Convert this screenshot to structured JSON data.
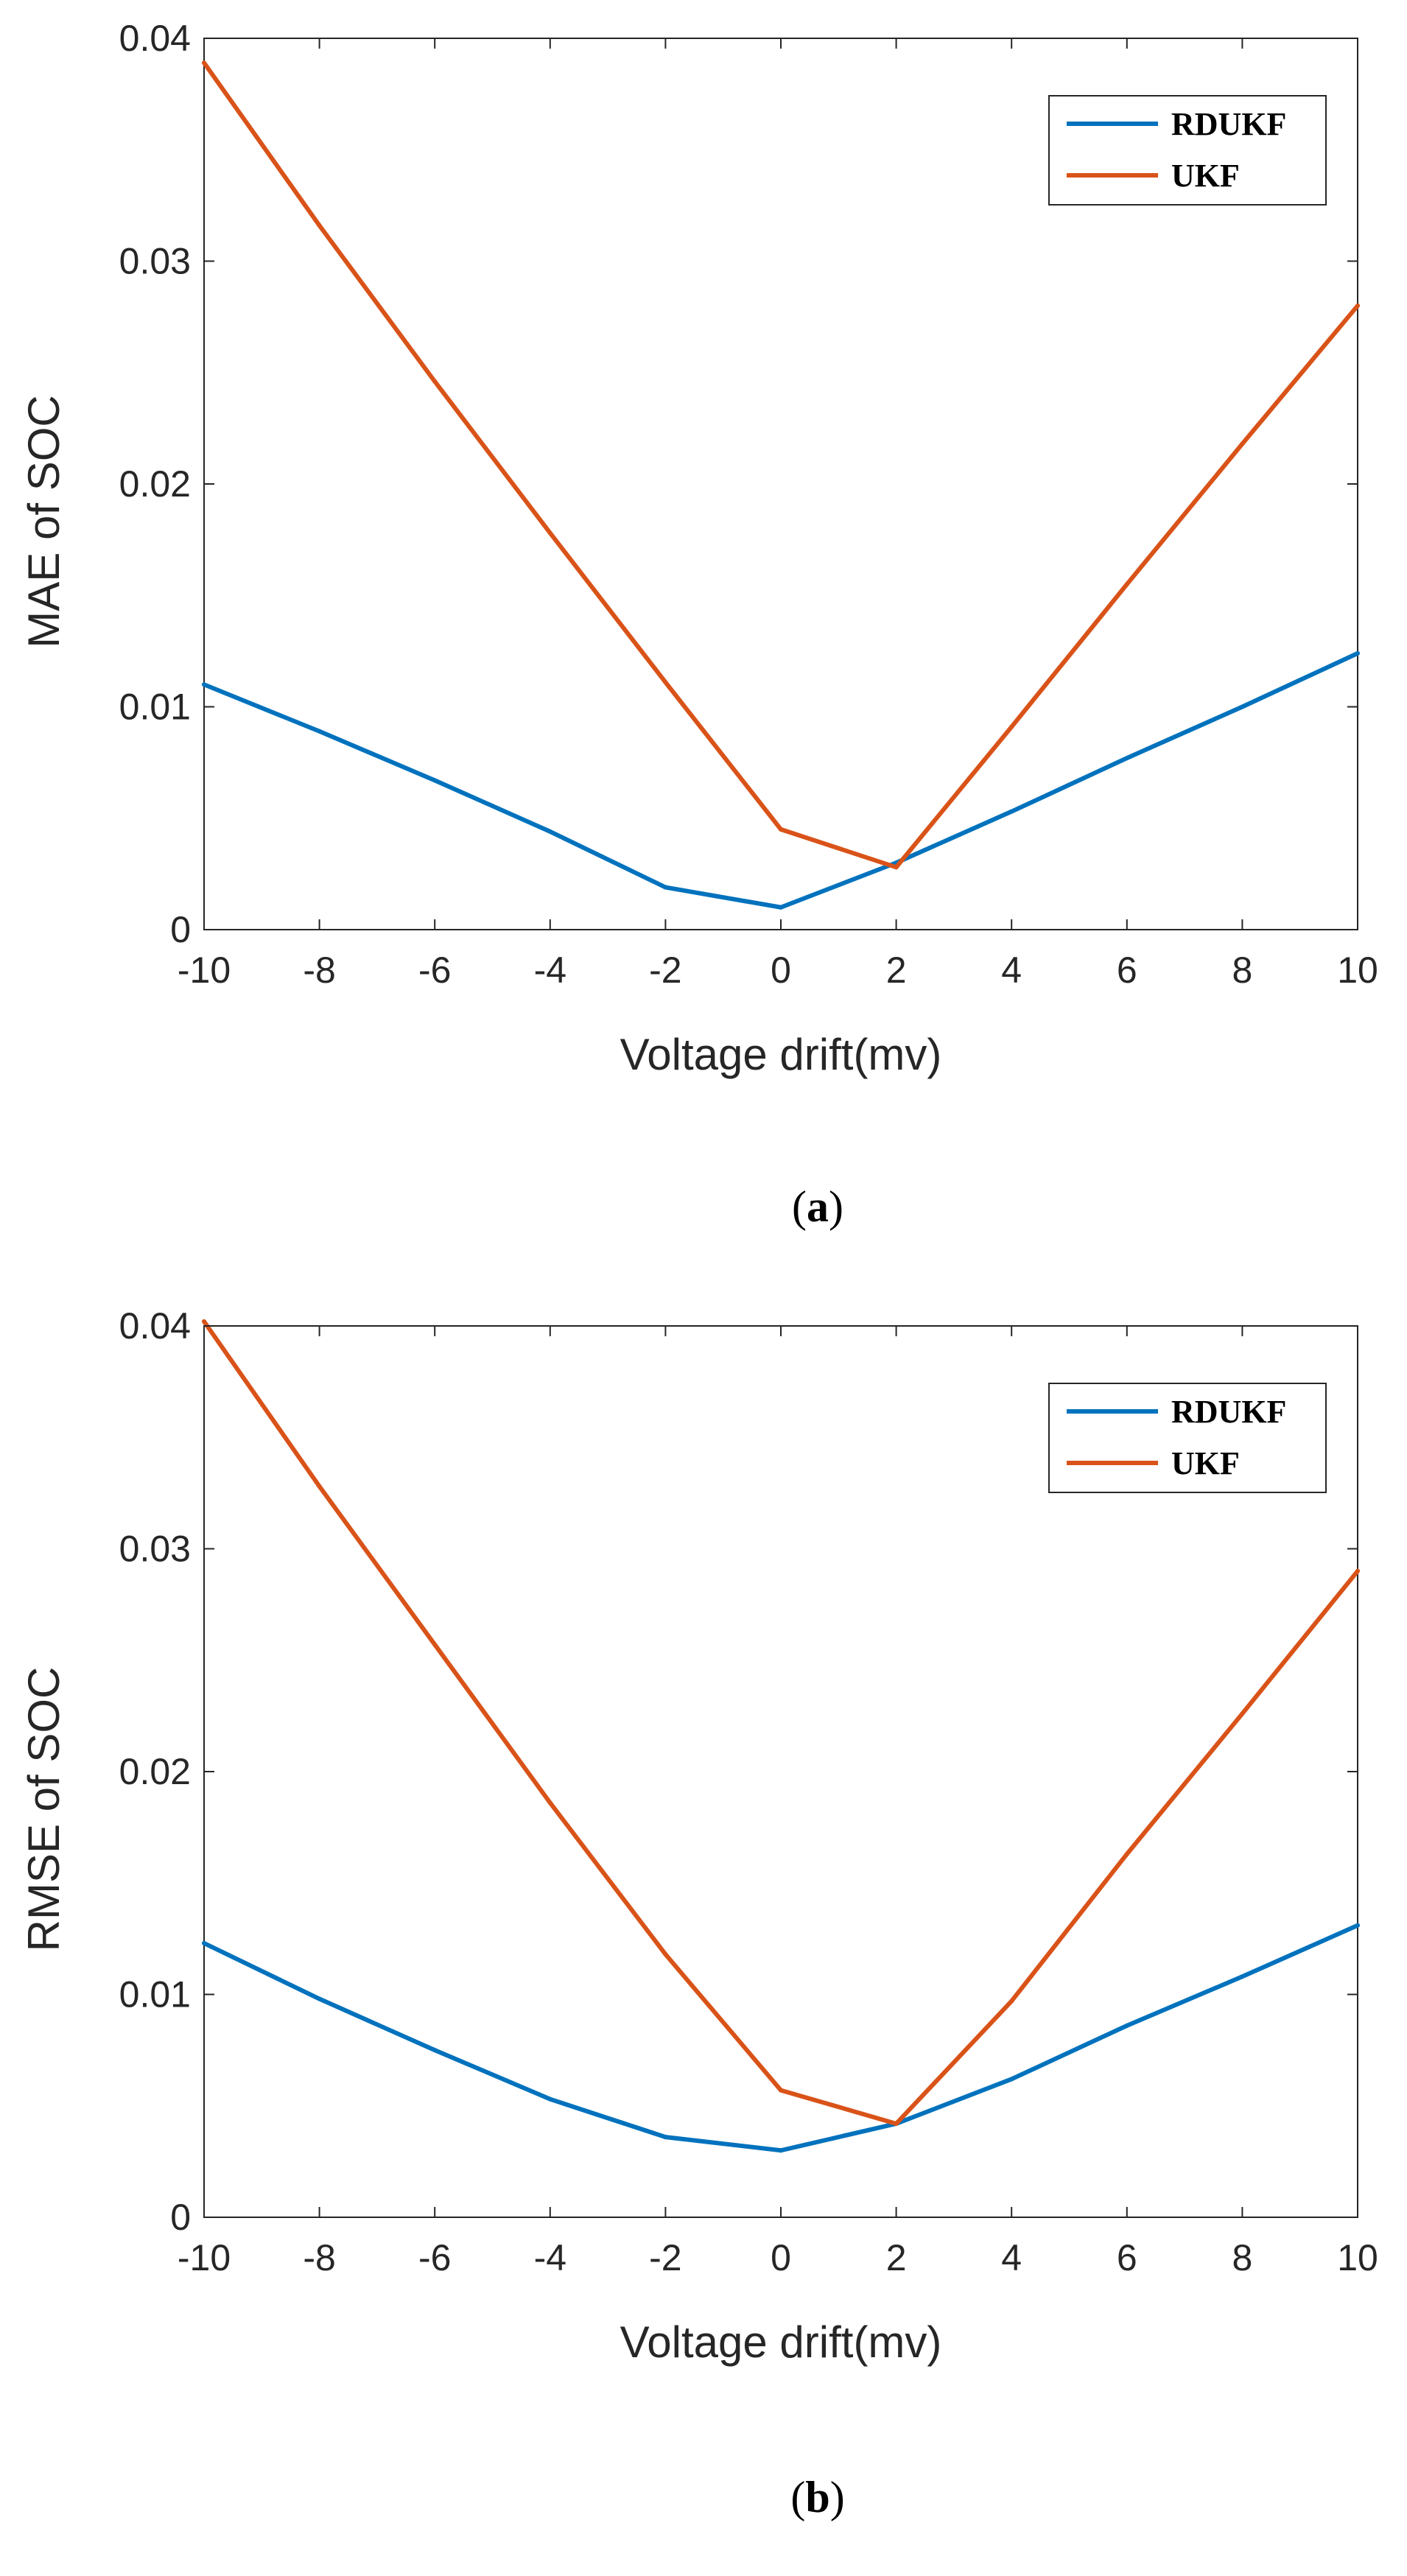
{
  "figure": {
    "panels": [
      {
        "caption_open": "(",
        "caption_letter": "a",
        "caption_close": ")"
      },
      {
        "caption_open": "(",
        "caption_letter": "b",
        "caption_close": ")"
      }
    ]
  },
  "chart_data": [
    {
      "type": "line",
      "title": "",
      "xlabel": "Voltage drift(mv)",
      "ylabel": "MAE of SOC",
      "xlim": [
        -10,
        10
      ],
      "ylim": [
        0,
        0.04
      ],
      "grid": false,
      "legend_position": "top-right",
      "x": [
        -10,
        -8,
        -6,
        -4,
        -2,
        0,
        2,
        4,
        6,
        8,
        10
      ],
      "xticks": [
        "-10",
        "-8",
        "-6",
        "-4",
        "-2",
        "0",
        "2",
        "4",
        "6",
        "8",
        "10"
      ],
      "yticks_values": [
        0,
        0.01,
        0.02,
        0.03,
        0.04
      ],
      "yticks": [
        "0",
        "0.01",
        "0.02",
        "0.03",
        "0.04"
      ],
      "series": [
        {
          "name": "RDUKF",
          "color": "#0072BD",
          "values": [
            0.011,
            0.0089,
            0.0067,
            0.0044,
            0.0019,
            0.001,
            0.003,
            0.0053,
            0.0077,
            0.01,
            0.0124
          ]
        },
        {
          "name": "UKF",
          "color": "#D95319",
          "values": [
            0.0389,
            0.0316,
            0.0246,
            0.0178,
            0.0111,
            0.0045,
            0.0028,
            0.0091,
            0.0155,
            0.0218,
            0.028
          ]
        }
      ]
    },
    {
      "type": "line",
      "title": "",
      "xlabel": "Voltage drift(mv)",
      "ylabel": "RMSE of SOC",
      "xlim": [
        -10,
        10
      ],
      "ylim": [
        0,
        0.04
      ],
      "grid": false,
      "legend_position": "top-right",
      "x": [
        -10,
        -8,
        -6,
        -4,
        -2,
        0,
        2,
        4,
        6,
        8,
        10
      ],
      "xticks": [
        "-10",
        "-8",
        "-6",
        "-4",
        "-2",
        "0",
        "2",
        "4",
        "6",
        "8",
        "10"
      ],
      "yticks_values": [
        0,
        0.01,
        0.02,
        0.03,
        0.04
      ],
      "yticks": [
        "0",
        "0.01",
        "0.02",
        "0.03",
        "0.04"
      ],
      "series": [
        {
          "name": "RDUKF",
          "color": "#0072BD",
          "values": [
            0.0123,
            0.0098,
            0.0075,
            0.0053,
            0.0036,
            0.003,
            0.0042,
            0.0062,
            0.0086,
            0.0108,
            0.0131
          ]
        },
        {
          "name": "UKF",
          "color": "#D95319",
          "values": [
            0.0402,
            0.0328,
            0.0257,
            0.0186,
            0.0118,
            0.0057,
            0.0042,
            0.0097,
            0.0163,
            0.0226,
            0.029
          ]
        }
      ]
    }
  ]
}
